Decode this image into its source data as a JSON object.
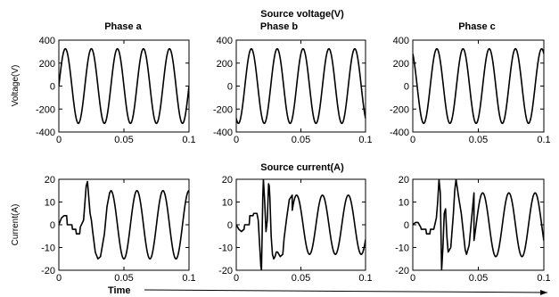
{
  "chart_data": [
    {
      "type": "line",
      "group_title": "Source voltage(V)",
      "title": "Phase a",
      "ylabel": "Voltage(V)",
      "xlabel": "",
      "xlim": [
        0,
        0.1
      ],
      "ylim": [
        -400,
        400
      ],
      "xticks": [
        "0",
        "0.05",
        "0.1"
      ],
      "yticks": [
        "400",
        "200",
        "0",
        "-200",
        "-400"
      ],
      "series": [
        {
          "kind": "sine",
          "amplitude": 325,
          "frequency_hz": 50,
          "phase_deg": 0
        }
      ]
    },
    {
      "type": "line",
      "title": "Phase b",
      "ylabel": "",
      "xlabel": "",
      "xlim": [
        0,
        0.1
      ],
      "ylim": [
        -400,
        400
      ],
      "xticks": [
        "0",
        "0.05",
        "0.1"
      ],
      "yticks": [
        "400",
        "200",
        "0",
        "-200",
        "-400"
      ],
      "series": [
        {
          "kind": "sine",
          "amplitude": 325,
          "frequency_hz": 50,
          "phase_deg": -120
        }
      ]
    },
    {
      "type": "line",
      "title": "Phase c",
      "ylabel": "",
      "xlabel": "",
      "xlim": [
        0,
        0.1
      ],
      "ylim": [
        -400,
        400
      ],
      "xticks": [
        "0",
        "0.05",
        "0.1"
      ],
      "yticks": [
        "400",
        "200",
        "0",
        "-200",
        "-400"
      ],
      "series": [
        {
          "kind": "sine",
          "amplitude": 325,
          "frequency_hz": 50,
          "phase_deg": 120
        }
      ]
    },
    {
      "type": "line",
      "group_title": "Source current(A)",
      "title": "",
      "ylabel": "Current(A)",
      "xlabel": "Time",
      "xlim": [
        0,
        0.1
      ],
      "ylim": [
        -20,
        20
      ],
      "xticks": [
        "0",
        "0.05",
        "0.1"
      ],
      "yticks": [
        "20",
        "10",
        "0",
        "-10",
        "-20"
      ],
      "series": [
        {
          "kind": "points",
          "x": [
            0,
            0.002,
            0.004,
            0.006,
            0.0065,
            0.01,
            0.0105,
            0.013,
            0.0135,
            0.016,
            0.0165,
            0.019,
            0.021,
            0.022,
            0.023,
            0.024,
            0.025,
            0.026,
            0.028,
            0.03,
            0.032,
            0.035,
            0.037,
            0.039,
            0.04
          ],
          "y": [
            0,
            3,
            4,
            4,
            0,
            0,
            -2,
            -2,
            -4,
            -4,
            -1,
            2,
            17,
            19,
            12,
            5,
            2,
            -3,
            -12,
            -15,
            -14,
            -4,
            8,
            14,
            15
          ]
        },
        {
          "kind": "sine",
          "x_start": 0.04,
          "amplitude": 15,
          "frequency_hz": 50,
          "phase_deg": 90
        }
      ]
    },
    {
      "type": "line",
      "title": "",
      "ylabel": "",
      "xlabel": "",
      "xlim": [
        0,
        0.1
      ],
      "ylim": [
        -20,
        20
      ],
      "xticks": [
        "0",
        "0.05",
        "0.1"
      ],
      "yticks": [
        "20",
        "10",
        "0",
        "-10",
        "-20"
      ],
      "series": [
        {
          "kind": "points",
          "x": [
            0,
            0.002,
            0.004,
            0.006,
            0.0065,
            0.01,
            0.0105,
            0.013,
            0.0135,
            0.016,
            0.017,
            0.018,
            0.019,
            0.0195,
            0.02,
            0.0205,
            0.021,
            0.022,
            0.023,
            0.024,
            0.025,
            0.0255,
            0.026,
            0.027,
            0.028,
            0.029,
            0.03,
            0.031,
            0.032,
            0.034,
            0.036,
            0.037,
            0.039,
            0.041,
            0.0433
          ],
          "y": [
            0,
            -2,
            -3,
            -2,
            0,
            0,
            4,
            4,
            5,
            5,
            2,
            -8,
            -18,
            -20,
            -5,
            12,
            20,
            10,
            -3,
            2,
            18,
            17,
            12,
            -5,
            -13,
            -15,
            -14,
            -12,
            -12,
            -14,
            -13,
            -6,
            3,
            11,
            13
          ]
        },
        {
          "kind": "sine",
          "x_start": 0.0433,
          "amplitude": 13,
          "frequency_hz": 50,
          "phase_deg": -30
        }
      ]
    },
    {
      "type": "line",
      "title": "",
      "ylabel": "",
      "xlabel": "",
      "xlim": [
        0,
        0.1
      ],
      "ylim": [
        -20,
        20
      ],
      "xticks": [
        "0",
        "0.05",
        "0.1"
      ],
      "yticks": [
        "20",
        "10",
        "0",
        "-10",
        "-20"
      ],
      "series": [
        {
          "kind": "points",
          "x": [
            0,
            0.002,
            0.004,
            0.006,
            0.0065,
            0.01,
            0.0105,
            0.013,
            0.0135,
            0.016,
            0.018,
            0.019,
            0.02,
            0.021,
            0.022,
            0.023,
            0.024,
            0.025,
            0.026,
            0.027,
            0.029,
            0.031,
            0.032,
            0.033,
            0.035,
            0.037,
            0.04,
            0.041,
            0.043,
            0.0467
          ],
          "y": [
            0,
            1,
            1,
            -1,
            -2,
            -2,
            -4,
            -4,
            -2,
            -2,
            3,
            10,
            20,
            14,
            -20,
            -10,
            5,
            7,
            -5,
            -12,
            -10,
            5,
            15,
            20,
            12,
            5,
            -11,
            -13,
            -9,
            14
          ]
        },
        {
          "kind": "sine",
          "x_start": 0.0467,
          "amplitude": 14,
          "frequency_hz": 50,
          "phase_deg": 210
        }
      ]
    }
  ]
}
